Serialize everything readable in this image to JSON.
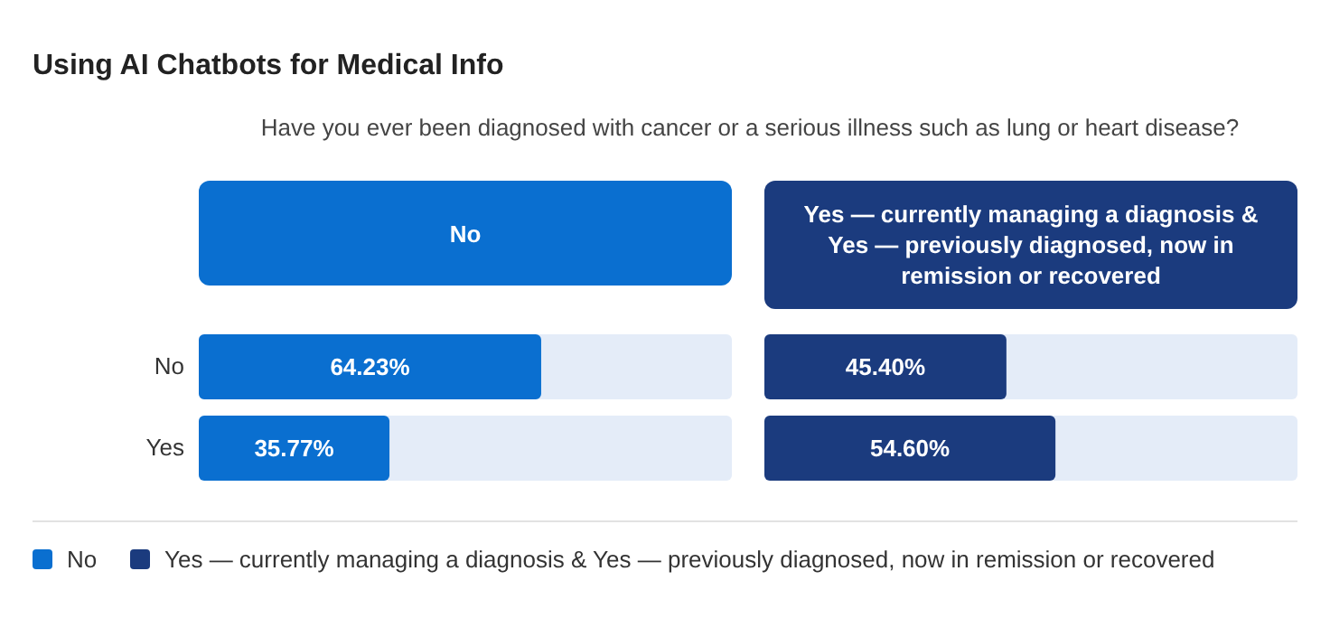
{
  "chart_data": [
    {
      "type": "bar",
      "title": "Using AI Chatbots for Medical Info",
      "subtitle": "Have you ever been diagnosed with cancer or a serious illness such as lung or heart disease?",
      "orientation": "horizontal",
      "categories": [
        "No",
        "Yes"
      ],
      "series": [
        {
          "name": "No",
          "color": "#0a6fd0",
          "values": [
            64.23,
            35.77
          ],
          "value_labels": [
            "64.23%",
            "35.77%"
          ]
        }
      ],
      "xlim": [
        0,
        100
      ],
      "tick_labels": "y",
      "legend": "bottom"
    },
    {
      "type": "bar",
      "orientation": "horizontal",
      "categories": [
        null,
        null
      ],
      "series": [
        {
          "name": "Yes — currently managing a diagnosis & Yes — previously diagnosed, now in remission or recovered",
          "color": "#1b3b7e",
          "values": [
            45.4,
            54.6
          ],
          "value_labels": [
            "45.40%",
            "54.60%"
          ]
        }
      ],
      "xlim": [
        0,
        100
      ],
      "tick_labels": false,
      "legend": "bottom"
    }
  ]
}
